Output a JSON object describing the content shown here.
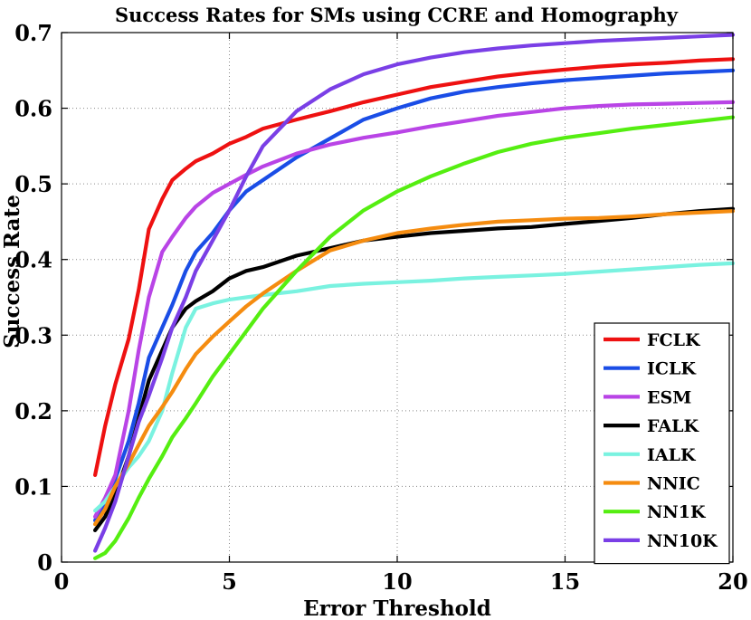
{
  "chart_data": {
    "type": "line",
    "title": "Success Rates for SMs using CCRE and Homography",
    "xlabel": "Error Threshold",
    "ylabel": "Success Rate",
    "xlim": [
      0,
      20
    ],
    "ylim": [
      0,
      0.7
    ],
    "xticks": [
      0,
      5,
      10,
      15,
      20
    ],
    "yticks": [
      0,
      0.1,
      0.2,
      0.3,
      0.4,
      0.5,
      0.6,
      0.7
    ],
    "xtick_labels": [
      "0",
      "5",
      "10",
      "15",
      "20"
    ],
    "ytick_labels": [
      "0",
      "0.1",
      "0.2",
      "0.3",
      "0.4",
      "0.5",
      "0.6",
      "0.7"
    ],
    "grid": true,
    "legend_position": "bottom-right",
    "series": [
      {
        "name": "FCLK",
        "color": "#ee1111",
        "x": [
          1,
          1.3,
          1.6,
          2,
          2.3,
          2.6,
          3,
          3.3,
          3.7,
          4,
          4.5,
          5,
          5.5,
          6,
          7,
          8,
          9,
          10,
          11,
          12,
          13,
          14,
          15,
          16,
          17,
          18,
          19,
          20
        ],
        "y": [
          0.115,
          0.18,
          0.235,
          0.295,
          0.36,
          0.44,
          0.48,
          0.505,
          0.52,
          0.53,
          0.54,
          0.553,
          0.562,
          0.573,
          0.585,
          0.596,
          0.608,
          0.618,
          0.628,
          0.635,
          0.642,
          0.647,
          0.651,
          0.655,
          0.658,
          0.66,
          0.663,
          0.665
        ]
      },
      {
        "name": "ICLK",
        "color": "#1a4de6",
        "x": [
          1,
          1.3,
          1.6,
          2,
          2.3,
          2.6,
          3,
          3.3,
          3.7,
          4,
          4.5,
          5,
          5.5,
          6,
          7,
          8,
          9,
          10,
          11,
          12,
          13,
          14,
          15,
          16,
          17,
          18,
          19,
          20
        ],
        "y": [
          0.055,
          0.08,
          0.11,
          0.16,
          0.21,
          0.27,
          0.31,
          0.34,
          0.385,
          0.41,
          0.435,
          0.465,
          0.49,
          0.505,
          0.535,
          0.56,
          0.585,
          0.6,
          0.613,
          0.622,
          0.628,
          0.633,
          0.637,
          0.64,
          0.643,
          0.646,
          0.648,
          0.65
        ]
      },
      {
        "name": "ESM",
        "color": "#b944e6",
        "x": [
          1,
          1.3,
          1.6,
          2,
          2.3,
          2.6,
          3,
          3.3,
          3.7,
          4,
          4.5,
          5,
          5.5,
          6,
          7,
          8,
          9,
          10,
          11,
          12,
          13,
          14,
          15,
          16,
          17,
          18,
          19,
          20
        ],
        "y": [
          0.06,
          0.085,
          0.115,
          0.2,
          0.28,
          0.35,
          0.41,
          0.43,
          0.455,
          0.47,
          0.488,
          0.5,
          0.512,
          0.523,
          0.54,
          0.552,
          0.561,
          0.568,
          0.576,
          0.583,
          0.59,
          0.595,
          0.6,
          0.603,
          0.605,
          0.606,
          0.607,
          0.608
        ]
      },
      {
        "name": "FALK",
        "color": "#000000",
        "x": [
          1,
          1.3,
          1.6,
          2,
          2.3,
          2.6,
          3,
          3.3,
          3.7,
          4,
          4.5,
          5,
          5.5,
          6,
          7,
          8,
          9,
          10,
          11,
          12,
          13,
          14,
          15,
          16,
          17,
          18,
          19,
          20
        ],
        "y": [
          0.042,
          0.06,
          0.09,
          0.14,
          0.19,
          0.24,
          0.28,
          0.31,
          0.335,
          0.345,
          0.358,
          0.375,
          0.385,
          0.39,
          0.405,
          0.415,
          0.425,
          0.43,
          0.435,
          0.438,
          0.441,
          0.443,
          0.447,
          0.451,
          0.455,
          0.46,
          0.464,
          0.467
        ]
      },
      {
        "name": "IALK",
        "color": "#7af2e0",
        "x": [
          1,
          1.3,
          1.6,
          2,
          2.3,
          2.6,
          3,
          3.3,
          3.7,
          4,
          4.5,
          5,
          5.5,
          6,
          7,
          8,
          9,
          10,
          11,
          12,
          13,
          14,
          15,
          16,
          17,
          18,
          19,
          20
        ],
        "y": [
          0.068,
          0.08,
          0.1,
          0.125,
          0.14,
          0.16,
          0.2,
          0.25,
          0.31,
          0.335,
          0.342,
          0.347,
          0.35,
          0.353,
          0.358,
          0.365,
          0.368,
          0.37,
          0.372,
          0.375,
          0.377,
          0.379,
          0.381,
          0.384,
          0.387,
          0.39,
          0.393,
          0.395
        ]
      },
      {
        "name": "NNIC",
        "color": "#f58c10",
        "x": [
          1,
          1.3,
          1.6,
          2,
          2.3,
          2.6,
          3,
          3.3,
          3.7,
          4,
          4.5,
          5,
          5.5,
          6,
          7,
          8,
          9,
          10,
          11,
          12,
          13,
          14,
          15,
          16,
          17,
          18,
          19,
          20
        ],
        "y": [
          0.05,
          0.07,
          0.1,
          0.13,
          0.155,
          0.18,
          0.205,
          0.225,
          0.255,
          0.275,
          0.298,
          0.318,
          0.338,
          0.355,
          0.385,
          0.412,
          0.425,
          0.435,
          0.441,
          0.446,
          0.45,
          0.452,
          0.454,
          0.455,
          0.457,
          0.46,
          0.462,
          0.464
        ]
      },
      {
        "name": "NN1K",
        "color": "#55ee11",
        "x": [
          1,
          1.3,
          1.6,
          2,
          2.3,
          2.6,
          3,
          3.3,
          3.7,
          4,
          4.5,
          5,
          5.5,
          6,
          7,
          8,
          9,
          10,
          11,
          12,
          13,
          14,
          15,
          16,
          17,
          18,
          19,
          20
        ],
        "y": [
          0.005,
          0.012,
          0.028,
          0.058,
          0.085,
          0.11,
          0.14,
          0.165,
          0.19,
          0.21,
          0.245,
          0.275,
          0.305,
          0.335,
          0.385,
          0.43,
          0.465,
          0.49,
          0.51,
          0.527,
          0.542,
          0.553,
          0.561,
          0.567,
          0.573,
          0.578,
          0.583,
          0.588
        ]
      },
      {
        "name": "NN10K",
        "color": "#7a3fe6",
        "x": [
          1,
          1.3,
          1.6,
          2,
          2.3,
          2.6,
          3,
          3.3,
          3.7,
          4,
          4.5,
          5,
          5.5,
          6,
          7,
          8,
          9,
          10,
          11,
          12,
          13,
          14,
          15,
          16,
          17,
          18,
          19,
          20
        ],
        "y": [
          0.015,
          0.045,
          0.08,
          0.14,
          0.185,
          0.22,
          0.27,
          0.31,
          0.35,
          0.385,
          0.425,
          0.465,
          0.51,
          0.55,
          0.596,
          0.625,
          0.645,
          0.658,
          0.667,
          0.674,
          0.679,
          0.683,
          0.686,
          0.689,
          0.691,
          0.693,
          0.695,
          0.697
        ]
      }
    ]
  }
}
